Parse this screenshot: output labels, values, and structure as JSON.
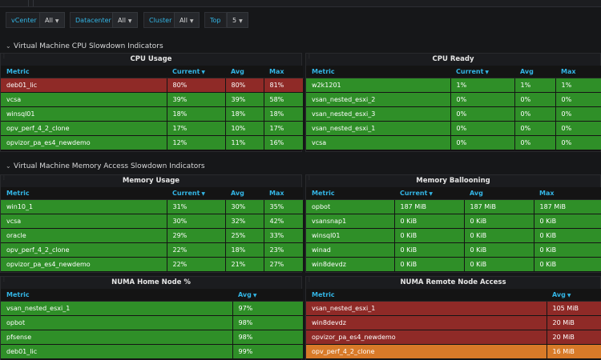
{
  "variables": [
    {
      "label": "vCenter",
      "value": "All"
    },
    {
      "label": "Datacenter",
      "value": "All"
    },
    {
      "label": "Cluster",
      "value": "All"
    },
    {
      "label": "Top",
      "value": "5"
    }
  ],
  "rows": {
    "cpu_title": "Virtual Machine CPU Slowdown Indicators",
    "memory_title": "Virtual Machine Memory Access Slowdown Indicators"
  },
  "colors": {
    "green": "#2f8f28",
    "red": "#8f2a27",
    "orange": "#d87a28",
    "link_blue": "#33b5e5"
  },
  "panels": {
    "cpu_usage": {
      "title": "CPU Usage",
      "columns": [
        "Metric",
        "Current",
        "Avg",
        "Max"
      ],
      "rows": [
        {
          "color": "red",
          "cells": [
            "deb01_lic",
            "80%",
            "80%",
            "81%"
          ]
        },
        {
          "color": "green",
          "cells": [
            "vcsa",
            "39%",
            "39%",
            "58%"
          ]
        },
        {
          "color": "green",
          "cells": [
            "winsql01",
            "18%",
            "18%",
            "18%"
          ]
        },
        {
          "color": "green",
          "cells": [
            "opv_perf_4_2_clone",
            "17%",
            "10%",
            "17%"
          ]
        },
        {
          "color": "green",
          "cells": [
            "opvizor_pa_es4_newdemo",
            "12%",
            "11%",
            "16%"
          ]
        }
      ]
    },
    "cpu_ready": {
      "title": "CPU Ready",
      "columns": [
        "Metric",
        "Current",
        "Avg",
        "Max"
      ],
      "rows": [
        {
          "color": "green",
          "cells": [
            "w2k1201",
            "1%",
            "1%",
            "1%"
          ]
        },
        {
          "color": "green",
          "cells": [
            "vsan_nested_esxi_2",
            "0%",
            "0%",
            "0%"
          ]
        },
        {
          "color": "green",
          "cells": [
            "vsan_nested_esxi_3",
            "0%",
            "0%",
            "0%"
          ]
        },
        {
          "color": "green",
          "cells": [
            "vsan_nested_esxi_1",
            "0%",
            "0%",
            "0%"
          ]
        },
        {
          "color": "green",
          "cells": [
            "vcsa",
            "0%",
            "0%",
            "0%"
          ]
        }
      ]
    },
    "memory_usage": {
      "title": "Memory Usage",
      "columns": [
        "Metric",
        "Current",
        "Avg",
        "Max"
      ],
      "rows": [
        {
          "color": "green",
          "cells": [
            "win10_1",
            "31%",
            "30%",
            "35%"
          ]
        },
        {
          "color": "green",
          "cells": [
            "vcsa",
            "30%",
            "32%",
            "42%"
          ]
        },
        {
          "color": "green",
          "cells": [
            "oracle",
            "29%",
            "25%",
            "33%"
          ]
        },
        {
          "color": "green",
          "cells": [
            "opv_perf_4_2_clone",
            "22%",
            "18%",
            "23%"
          ]
        },
        {
          "color": "green",
          "cells": [
            "opvizor_pa_es4_newdemo",
            "22%",
            "21%",
            "27%"
          ]
        }
      ]
    },
    "memory_ballooning": {
      "title": "Memory Ballooning",
      "columns": [
        "Metric",
        "Current",
        "Avg",
        "Max"
      ],
      "rows": [
        {
          "color": "green",
          "cells": [
            "opbot",
            "187 MiB",
            "187 MiB",
            "187 MiB"
          ]
        },
        {
          "color": "green",
          "cells": [
            "vsansnap1",
            "0 KiB",
            "0 KiB",
            "0 KiB"
          ]
        },
        {
          "color": "green",
          "cells": [
            "winsql01",
            "0 KiB",
            "0 KiB",
            "0 KiB"
          ]
        },
        {
          "color": "green",
          "cells": [
            "winad",
            "0 KiB",
            "0 KiB",
            "0 KiB"
          ]
        },
        {
          "color": "green",
          "cells": [
            "win8devdz",
            "0 KiB",
            "0 KiB",
            "0 KiB"
          ]
        }
      ]
    },
    "numa_home": {
      "title": "NUMA Home Node %",
      "columns": [
        "Metric",
        "Avg"
      ],
      "rows": [
        {
          "color": "green",
          "cells": [
            "vsan_nested_esxi_1",
            "97%"
          ]
        },
        {
          "color": "green",
          "cells": [
            "opbot",
            "98%"
          ]
        },
        {
          "color": "green",
          "cells": [
            "pfsense",
            "98%"
          ]
        },
        {
          "color": "green",
          "cells": [
            "deb01_lic",
            "99%"
          ]
        }
      ]
    },
    "numa_remote": {
      "title": "NUMA Remote Node Access",
      "columns": [
        "Metric",
        "Avg"
      ],
      "rows": [
        {
          "color": "red",
          "cells": [
            "vsan_nested_esxi_1",
            "105 MiB"
          ]
        },
        {
          "color": "red",
          "cells": [
            "win8devdz",
            "20 MiB"
          ]
        },
        {
          "color": "red",
          "cells": [
            "opvizor_pa_es4_newdemo",
            "20 MiB"
          ]
        },
        {
          "color": "orange",
          "cells": [
            "opv_perf_4_2_clone",
            "16 MiB"
          ]
        }
      ]
    }
  }
}
